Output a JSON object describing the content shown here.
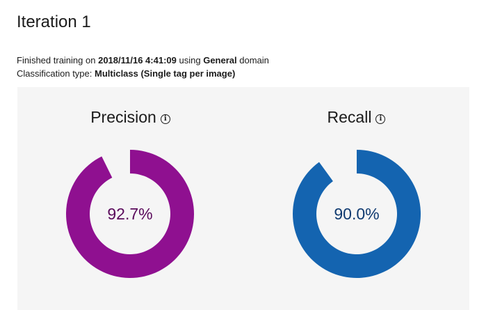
{
  "page": {
    "title": "Iteration 1",
    "info_line1": {
      "prefix": "Finished training on",
      "timestamp": "2018/11/16 4:41:09",
      "middle": "using",
      "domain": "General",
      "suffix": "domain"
    },
    "info_line2": {
      "prefix": "Classification type:",
      "type": "Multiclass (Single tag per image)"
    }
  },
  "metrics": [
    {
      "label": "Precision",
      "value_text": "92.7%",
      "value": 0.927,
      "color": "#8f1090",
      "text_color": "#5a0a5b",
      "icon": "info-icon"
    },
    {
      "label": "Recall",
      "value_text": "90.0%",
      "value": 0.9,
      "color": "#1464b0",
      "text_color": "#0f3a70",
      "icon": "info-icon"
    }
  ]
}
